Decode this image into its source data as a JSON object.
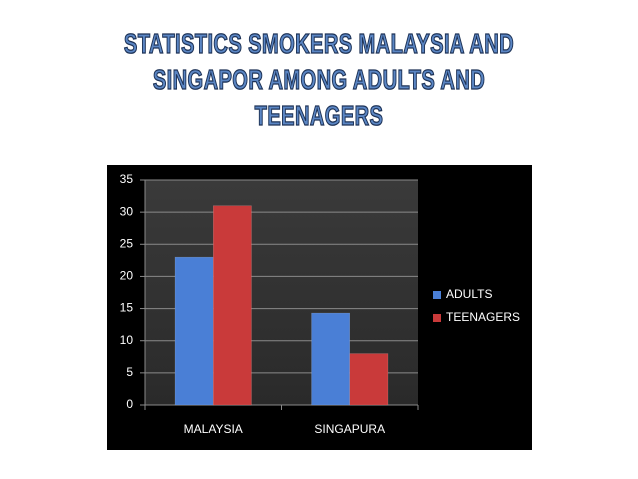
{
  "chart_data": {
    "type": "bar",
    "title": "STATISTICS SMOKERS MALAYSIA AND SINGAPOR AMONG ADULTS AND TEENAGERS",
    "categories": [
      "MALAYSIA",
      "SINGAPURA"
    ],
    "series": [
      {
        "name": "ADULTS",
        "color": "#4a7fd6",
        "values": [
          23,
          14.3
        ]
      },
      {
        "name": "TEENAGERS",
        "color": "#c93a3a",
        "values": [
          31,
          8
        ]
      }
    ],
    "ylim": [
      0,
      35
    ],
    "yticks": [
      0,
      5,
      10,
      15,
      20,
      25,
      30,
      35
    ],
    "grid": true,
    "legend": "right"
  }
}
